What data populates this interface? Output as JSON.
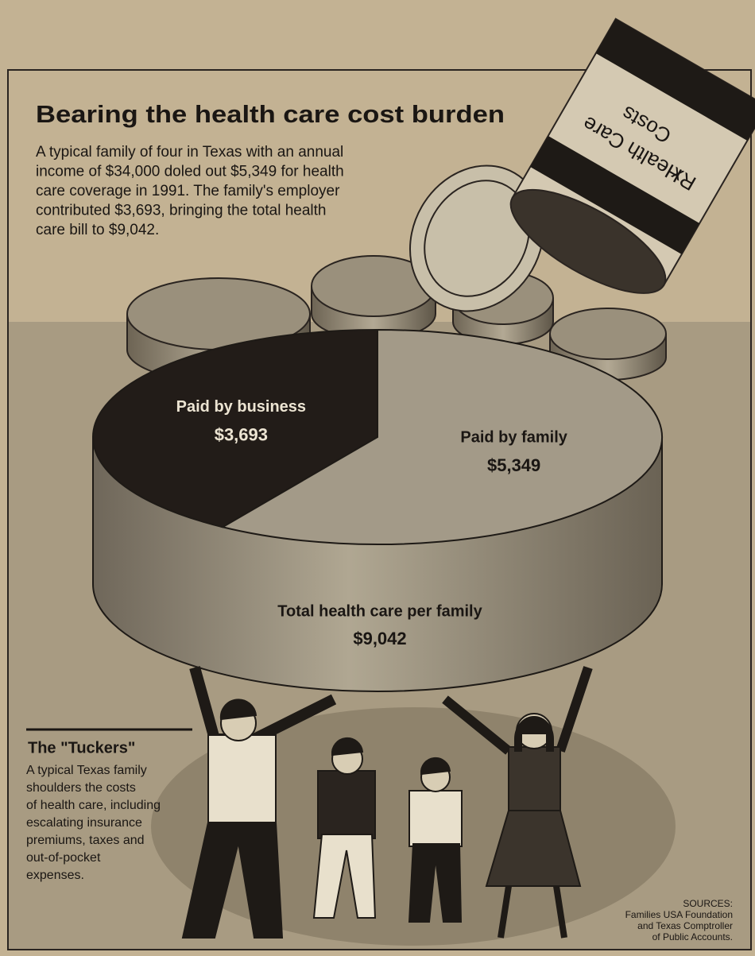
{
  "chart_data": {
    "type": "pie",
    "title": "Bearing the health care cost burden",
    "description": [
      "A typical family of four in Texas with an annual",
      "income of $34,000 doled out $5,349 for health",
      "care coverage in 1991. The family's employer",
      "contributed $3,693, bringing the total health",
      "care bill to $9,042."
    ],
    "categories": [
      "Paid by business",
      "Paid by family"
    ],
    "values": [
      3693,
      5349
    ],
    "value_labels": [
      "$3,693",
      "$5,349"
    ],
    "colors": [
      "#221c18",
      "#a39a88"
    ],
    "total_title": "Total health care per family",
    "total": {
      "value": 9042,
      "label": "$9,042"
    }
  },
  "bottle_label": [
    "Health Care",
    "Costs"
  ],
  "bottle_mark": "Rx",
  "sidebar": {
    "title": "The \"Tuckers\"",
    "text": [
      "A typical Texas family",
      "shoulders the costs",
      "of health care, including",
      "escalating insurance",
      "premiums, taxes and",
      "out-of-pocket",
      "expenses."
    ]
  },
  "sources": [
    "SOURCES:",
    "Families USA Foundation",
    "and Texas Comptroller",
    "of Public Accounts."
  ]
}
